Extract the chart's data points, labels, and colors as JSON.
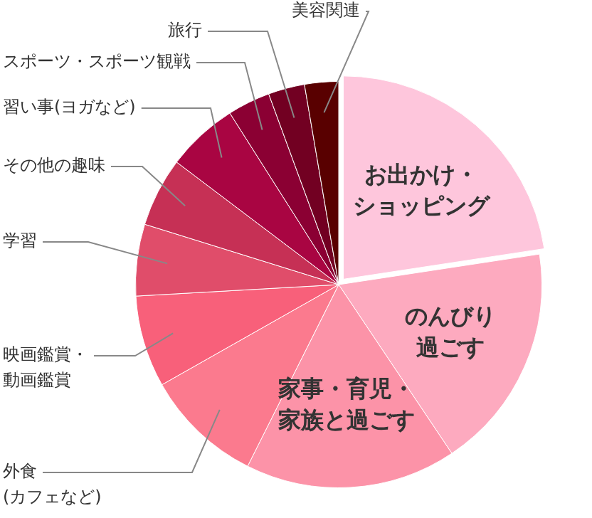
{
  "chart_data": {
    "type": "pie",
    "legend": false,
    "categories": [
      "お出かけ・ショッピング",
      "のんびり過ごす",
      "家事・育児・家族と過ごす",
      "外食(カフェなど)",
      "映画鑑賞・動画鑑賞",
      "学習",
      "その他の趣味",
      "習い事(ヨガなど)",
      "スポーツ・スポーツ観戦",
      "旅行",
      "美容関連"
    ],
    "values": [
      22.6,
      18,
      16.8,
      9.4,
      7.3,
      5.7,
      5.5,
      5.7,
      3.4,
      2.9,
      2.7
    ],
    "colors": [
      "#fec6dc",
      "#fdaabf",
      "#fc93a8",
      "#fb7a8e",
      "#f8607a",
      "#e04d6a",
      "#c63055",
      "#a90542",
      "#8b0033",
      "#720022",
      "#590000"
    ]
  }
}
